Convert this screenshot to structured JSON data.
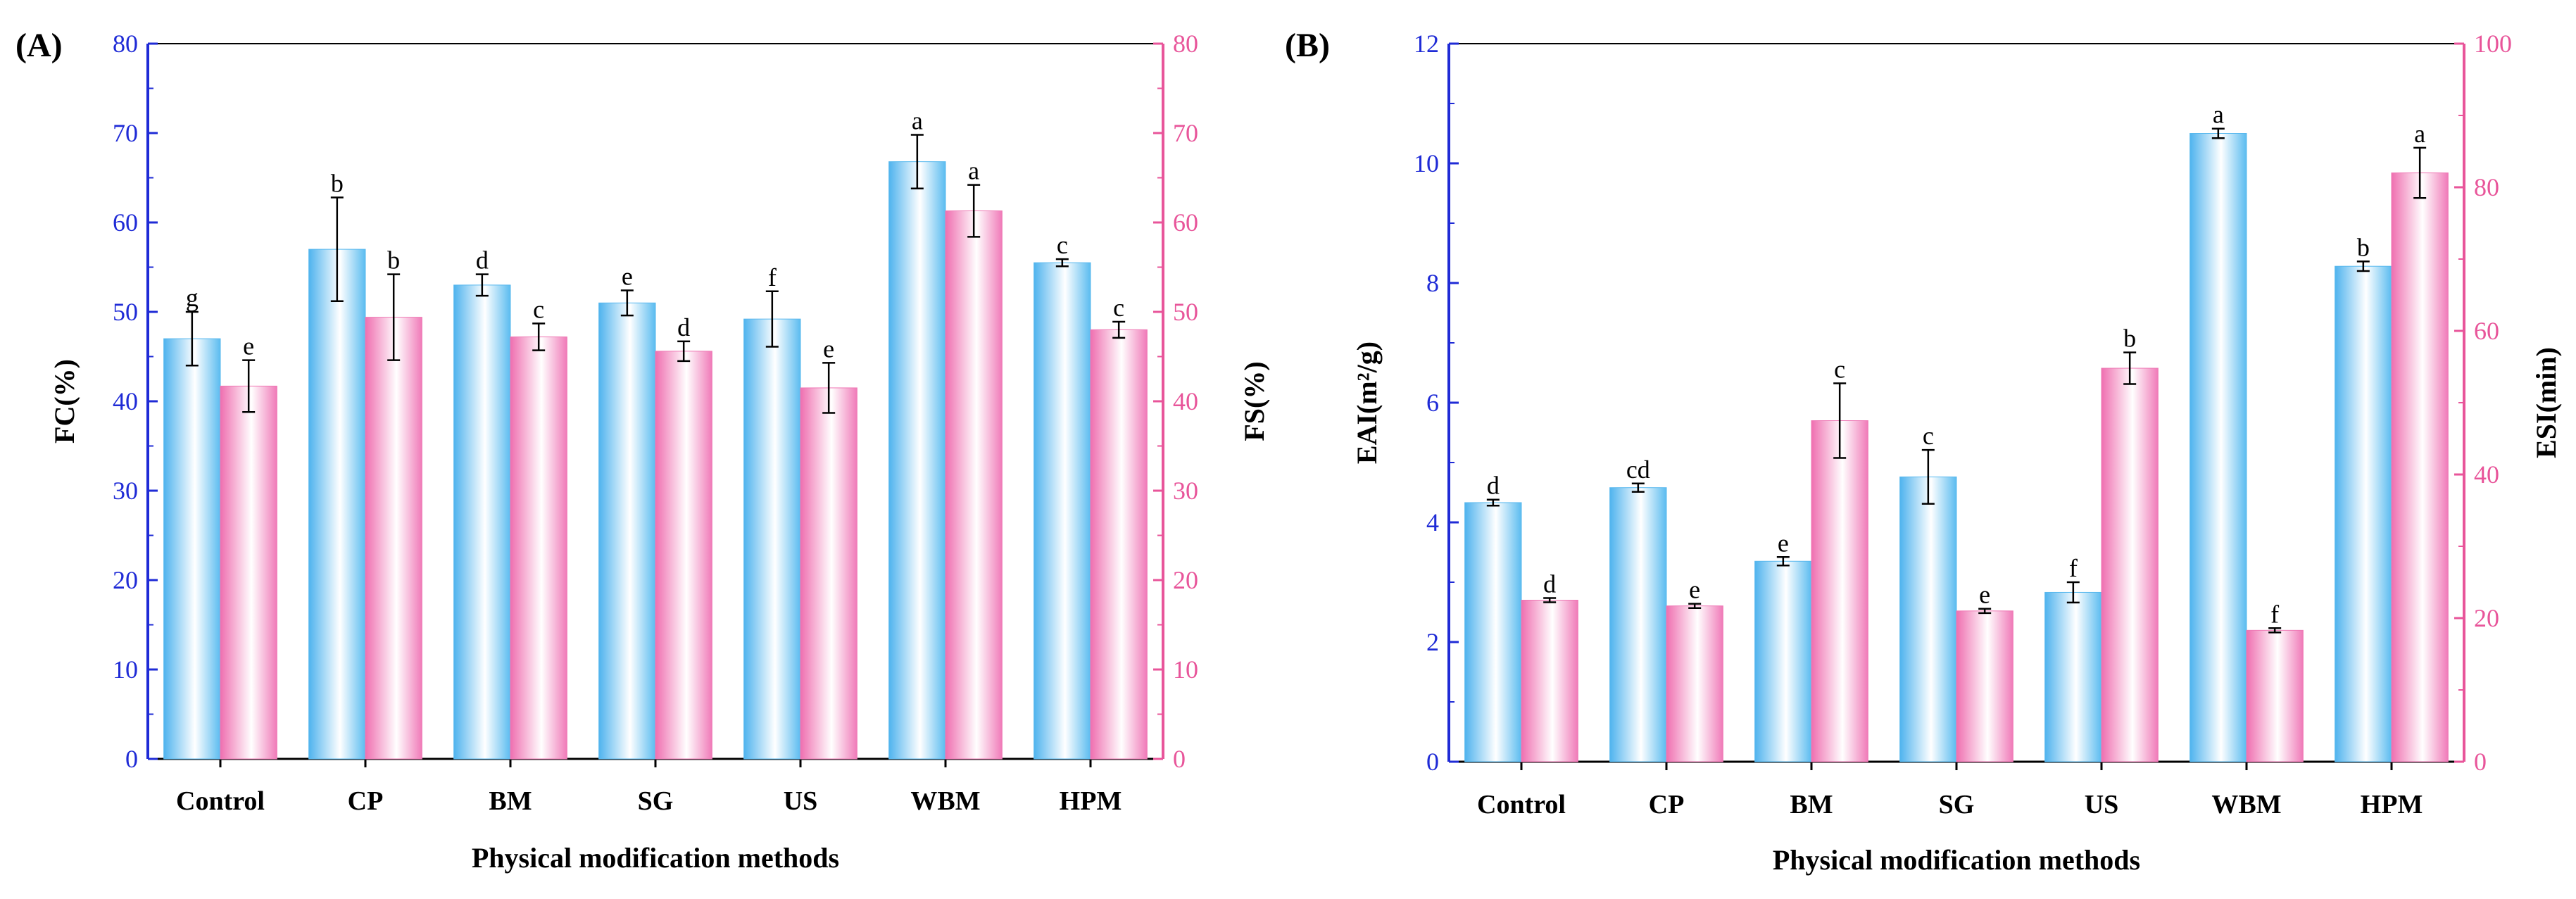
{
  "colors": {
    "left_axis": "#1f2bd6",
    "right_axis": "#e8559a",
    "blue_bar_edge": "#58b8ee",
    "pink_bar_edge": "#ee78b4"
  },
  "chart_data": [
    {
      "type": "bar",
      "panel_label": "(A)",
      "categories": [
        "Control",
        "CP",
        "BM",
        "SG",
        "US",
        "WBM",
        "HPM"
      ],
      "xlabel": "Physical modification methods",
      "ylabel_left": "FC(%)",
      "ylabel_right": "FS(%)",
      "ylim_left": [
        0,
        80
      ],
      "ylim_right": [
        0,
        80
      ],
      "ticks_left": [
        "0",
        "10",
        "20",
        "30",
        "40",
        "50",
        "60",
        "70",
        "80"
      ],
      "ticks_right": [
        "0",
        "10",
        "20",
        "30",
        "40",
        "50",
        "60",
        "70",
        "80"
      ],
      "series": [
        {
          "name": "FC",
          "axis": "left",
          "values": [
            47.0,
            57.0,
            53.0,
            51.0,
            49.2,
            66.8,
            55.5
          ],
          "errors": [
            3.0,
            5.8,
            1.2,
            1.4,
            3.1,
            3.0,
            0.4
          ],
          "letters": [
            "g",
            "b",
            "d",
            "e",
            "f",
            "a",
            "c"
          ]
        },
        {
          "name": "FS",
          "axis": "right",
          "values": [
            41.7,
            49.4,
            47.2,
            45.6,
            41.5,
            61.3,
            48.0
          ],
          "errors": [
            2.9,
            4.8,
            1.5,
            1.1,
            2.8,
            2.9,
            0.9
          ],
          "letters": [
            "e",
            "b",
            "c",
            "d",
            "e",
            "a",
            "c"
          ]
        }
      ]
    },
    {
      "type": "bar",
      "panel_label": "(B)",
      "categories": [
        "Control",
        "CP",
        "BM",
        "SG",
        "US",
        "WBM",
        "HPM"
      ],
      "xlabel": "Physical modification methods",
      "ylabel_left": "EAI(m²/g)",
      "ylabel_right": "ESI(min)",
      "ylim_left": [
        0,
        12
      ],
      "ylim_right": [
        0,
        100
      ],
      "ticks_left": [
        "0",
        "2",
        "4",
        "6",
        "8",
        "10",
        "12"
      ],
      "ticks_right": [
        "0",
        "20",
        "40",
        "60",
        "80",
        "100"
      ],
      "series": [
        {
          "name": "EAI",
          "axis": "left",
          "values": [
            4.33,
            4.58,
            3.35,
            4.76,
            2.83,
            10.5,
            8.28
          ],
          "errors": [
            0.05,
            0.07,
            0.07,
            0.45,
            0.17,
            0.08,
            0.08
          ],
          "letters": [
            "d",
            "cd",
            "e",
            "c",
            "f",
            "a",
            "b"
          ]
        },
        {
          "name": "ESI",
          "axis": "right",
          "values": [
            22.5,
            21.7,
            47.5,
            21.0,
            54.8,
            18.3,
            82.0
          ],
          "errors": [
            0.3,
            0.3,
            5.2,
            0.3,
            2.2,
            0.3,
            3.5
          ],
          "letters": [
            "d",
            "e",
            "c",
            "e",
            "b",
            "f",
            "a"
          ]
        }
      ]
    }
  ]
}
